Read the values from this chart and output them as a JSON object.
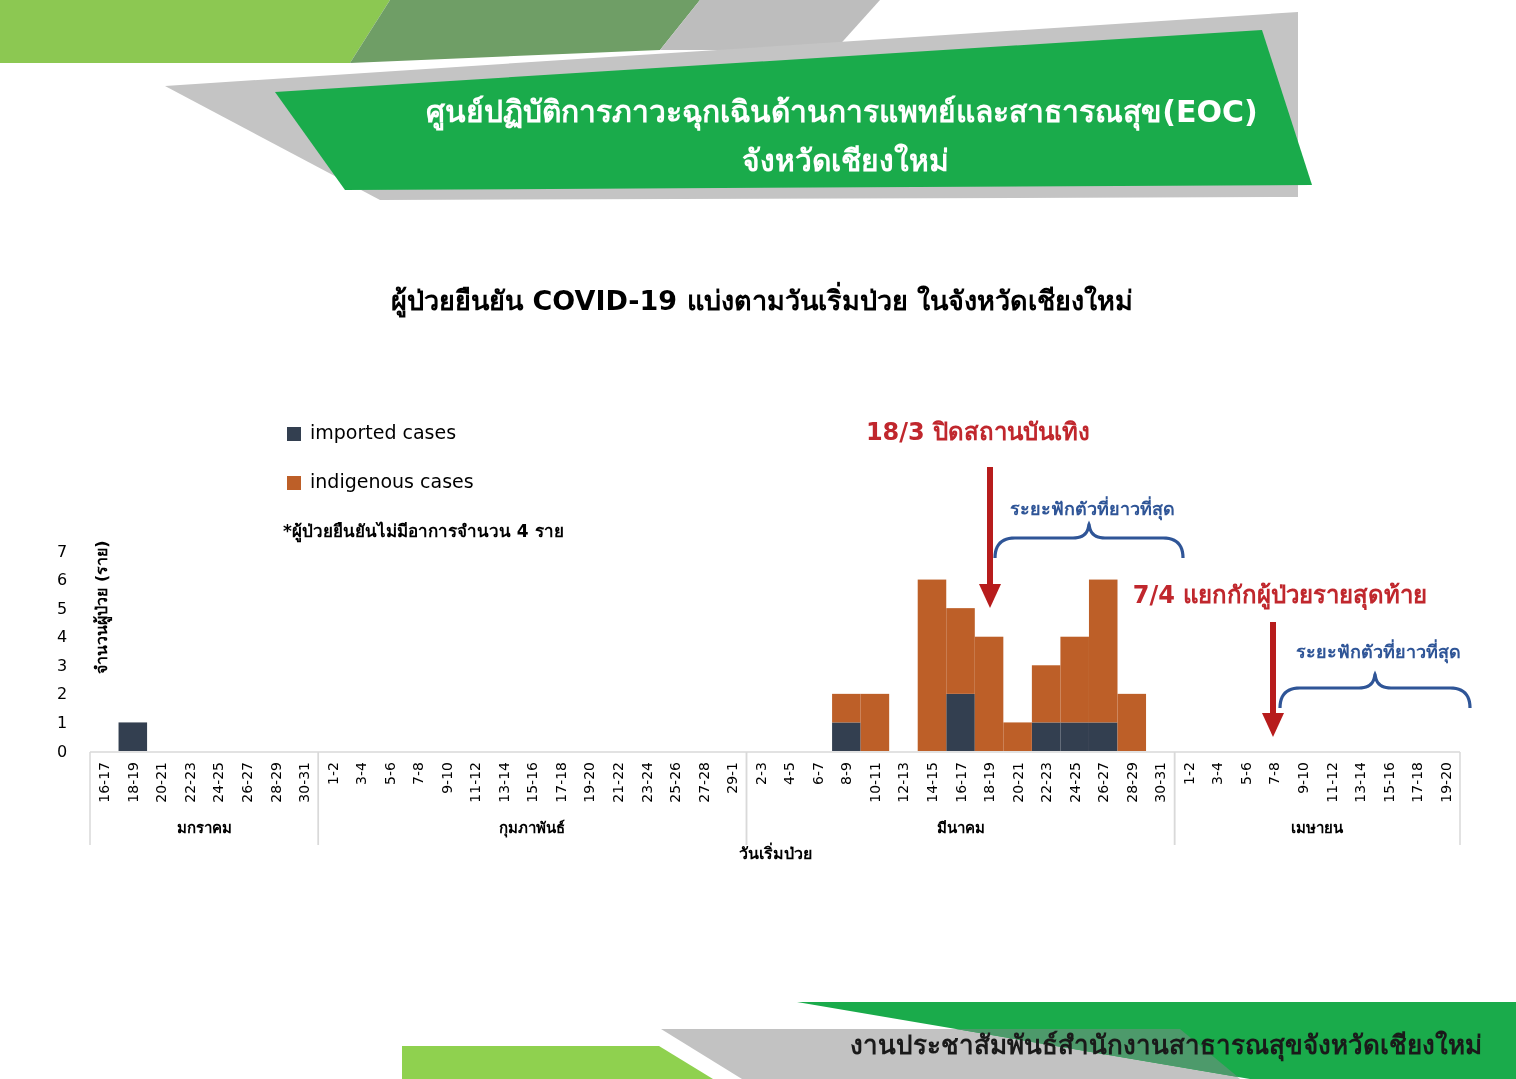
{
  "chart_data": {
    "type": "bar",
    "title": "ผู้ป่วยยืนยัน COVID-19 แบ่งตามวันเริ่มป่วย ในจังหวัดเชียงใหม่",
    "xlabel": "วันเริ่มป่วย",
    "ylabel": "จำนวนผู้ป่วย (ราย)",
    "categories": [
      "16-17",
      "18-19",
      "20-21",
      "22-23",
      "24-25",
      "26-27",
      "28-29",
      "30-31",
      "1-2",
      "3-4",
      "5-6",
      "7-8",
      "9-10",
      "11-12",
      "13-14",
      "15-16",
      "17-18",
      "19-20",
      "21-22",
      "23-24",
      "25-26",
      "27-28",
      "29-1",
      "2-3",
      "4-5",
      "6-7",
      "8-9",
      "10-11",
      "12-13",
      "14-15",
      "16-17",
      "18-19",
      "20-21",
      "22-23",
      "24-25",
      "26-27",
      "28-29",
      "30-31",
      "1-2",
      "3-4",
      "5-6",
      "7-8",
      "9-10",
      "11-12",
      "13-14",
      "15-16",
      "17-18",
      "19-20"
    ],
    "series": [
      {
        "name": "imported cases",
        "color": "#333f50",
        "values": [
          0,
          1,
          0,
          0,
          0,
          0,
          0,
          0,
          0,
          0,
          0,
          0,
          0,
          0,
          0,
          0,
          0,
          0,
          0,
          0,
          0,
          0,
          0,
          0,
          0,
          0,
          1,
          0,
          0,
          0,
          2,
          0,
          0,
          1,
          1,
          1,
          0,
          0,
          0,
          0,
          0,
          0,
          0,
          0,
          0,
          0,
          0,
          0
        ]
      },
      {
        "name": "indigenous cases",
        "color": "#bd5f28",
        "values": [
          0,
          0,
          0,
          0,
          0,
          0,
          0,
          0,
          0,
          0,
          0,
          0,
          0,
          0,
          0,
          0,
          0,
          0,
          0,
          0,
          0,
          0,
          0,
          0,
          0,
          0,
          1,
          2,
          0,
          6,
          3,
          4,
          1,
          2,
          3,
          5,
          2,
          0,
          0,
          0,
          0,
          0,
          0,
          0,
          0,
          0,
          0,
          0
        ]
      }
    ],
    "stacked": true,
    "ylim": [
      0,
      7
    ],
    "yticks": [
      0,
      1,
      2,
      3,
      4,
      5,
      6,
      7
    ],
    "legend": "top left",
    "annotations": [
      "ศูนย์ปฏิบัติการภาวะฉุกเฉินด้านการแพทย์และสาธารณสุข(EOC)",
      "จังหวัดเชียงใหม่",
      "*ผู้ป่วยยืนยันไม่มีอาการจำนวน 4 ราย",
      "18/3 ปิดสถานบันเทิง",
      "ระยะฟักตัวที่ยาวที่สุด",
      "7/4 แยกกักผู้ป่วยรายสุดท้าย",
      "ระยะฟักตัวที่ยาวที่สุด",
      "มกราคม",
      "กุมภาพันธ์",
      "มีนาคม",
      "เมษายน",
      "งานประชาสัมพันธ์สำนักงานสาธารณสุขจังหวัดเชียงใหม่"
    ]
  }
}
